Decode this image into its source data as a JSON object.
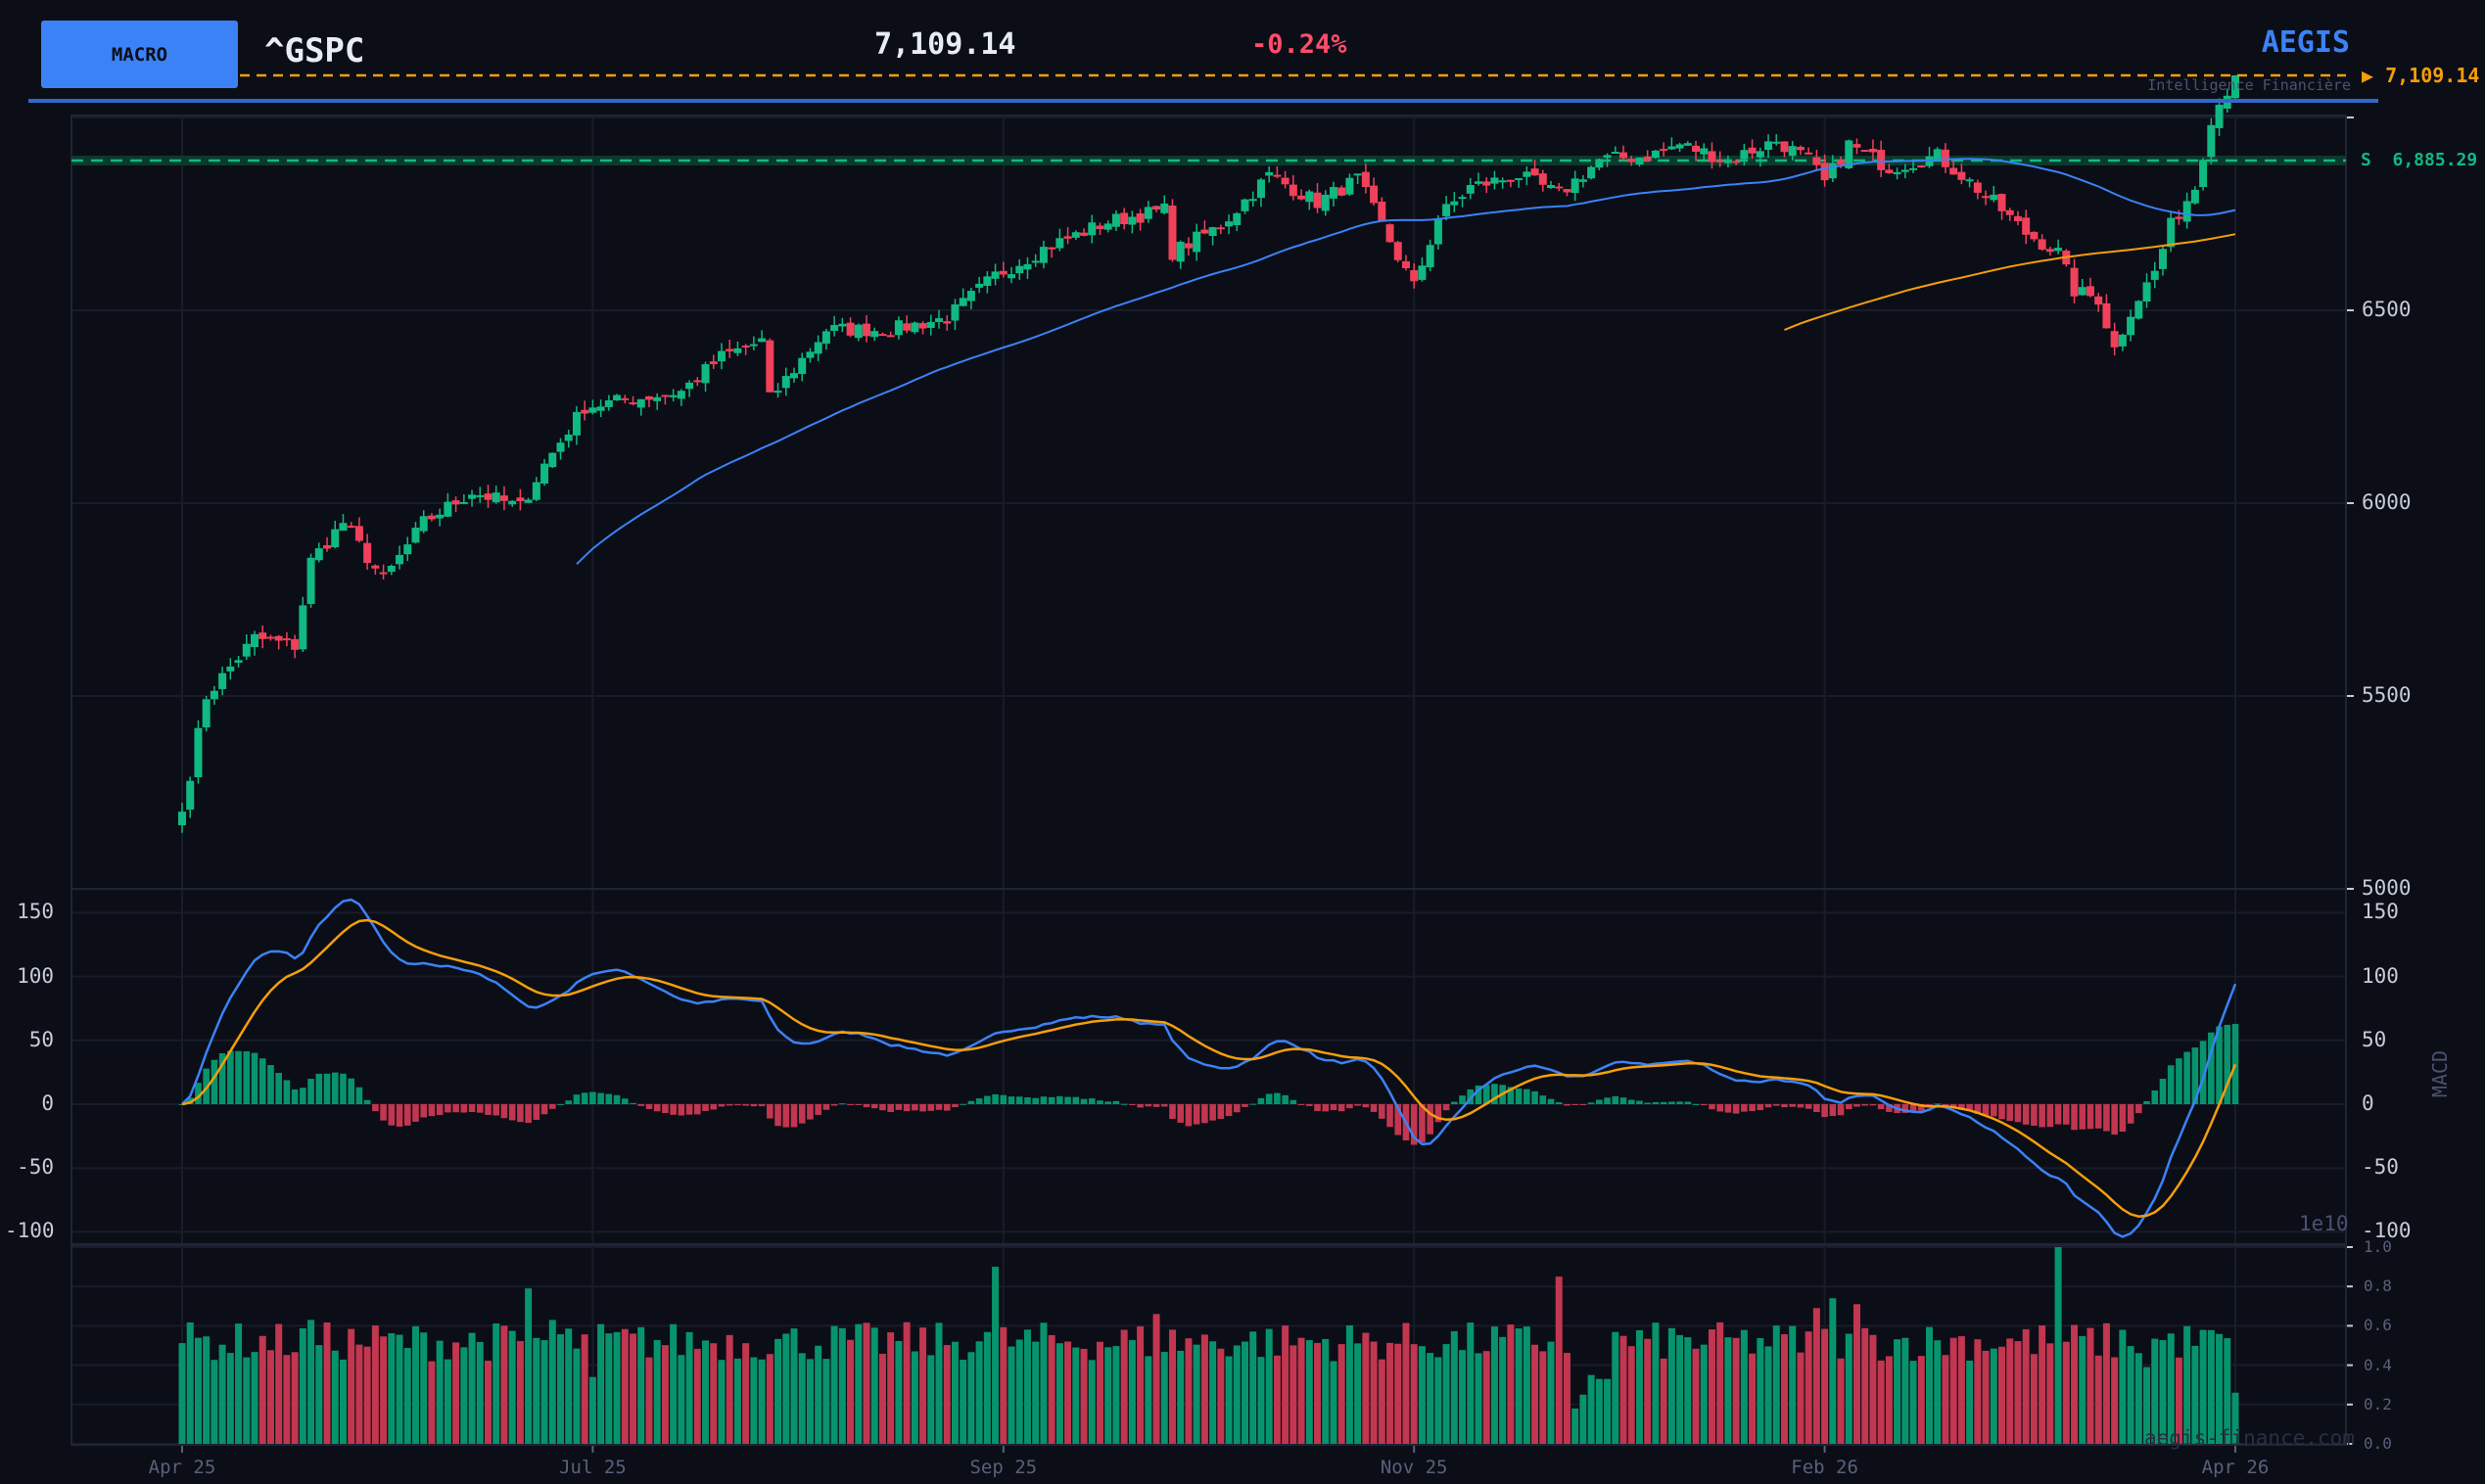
{
  "header": {
    "macro_button": "MACRO",
    "ticker": "^GSPC",
    "price": "7,109.14",
    "change": "-0.24%",
    "brand": "AEGIS",
    "tagline": "Intelligence Financière",
    "last_price_label": "▶ 7,109.14",
    "support_label": "S  6,885.29"
  },
  "watermark": "aegis-finance.com",
  "colors": {
    "up": "#10b981",
    "down": "#f0405a",
    "vol_up": "#07946c",
    "vol_down": "#c23650",
    "sma50": "#3b82f6",
    "sma200": "#f59e0b",
    "macd": "#3b82f6",
    "signal": "#f59e0b",
    "accent": "#3b82f6"
  },
  "chart_data": [
    {
      "type": "candlestick",
      "title": "^GSPC",
      "last_price": 7109.14,
      "support": 6885.29,
      "ylim": [
        5000,
        7050
      ],
      "yticks": [
        "5000",
        "5500",
        "6000",
        "6500"
      ],
      "xticks": [
        "Apr 25",
        "Jul 25",
        "Sep 25",
        "Nov 25",
        "Feb 26",
        "Apr 26"
      ],
      "bars": 256,
      "overlays": [
        "SMA 50",
        "SMA 200"
      ],
      "close_anchors": [
        [
          0,
          5200
        ],
        [
          3,
          5500
        ],
        [
          9,
          5650
        ],
        [
          14,
          5630
        ],
        [
          16,
          5850
        ],
        [
          20,
          5950
        ],
        [
          25,
          5800
        ],
        [
          30,
          5950
        ],
        [
          36,
          6030
        ],
        [
          42,
          5990
        ],
        [
          45,
          6100
        ],
        [
          50,
          6250
        ],
        [
          56,
          6270
        ],
        [
          62,
          6290
        ],
        [
          67,
          6380
        ],
        [
          72,
          6420
        ],
        [
          73,
          6270
        ],
        [
          80,
          6450
        ],
        [
          88,
          6450
        ],
        [
          95,
          6480
        ],
        [
          101,
          6590
        ],
        [
          107,
          6660
        ],
        [
          115,
          6730
        ],
        [
          122,
          6760
        ],
        [
          123,
          6650
        ],
        [
          129,
          6720
        ],
        [
          135,
          6850
        ],
        [
          141,
          6780
        ],
        [
          146,
          6840
        ],
        [
          150,
          6680
        ],
        [
          153,
          6560
        ],
        [
          156,
          6740
        ],
        [
          160,
          6820
        ],
        [
          166,
          6850
        ],
        [
          171,
          6800
        ],
        [
          176,
          6890
        ],
        [
          182,
          6900
        ],
        [
          186,
          6930
        ],
        [
          192,
          6890
        ],
        [
          198,
          6940
        ],
        [
          202,
          6890
        ],
        [
          204,
          6830
        ],
        [
          207,
          6930
        ],
        [
          212,
          6870
        ],
        [
          218,
          6900
        ],
        [
          221,
          6850
        ],
        [
          225,
          6780
        ],
        [
          229,
          6700
        ],
        [
          233,
          6650
        ],
        [
          235,
          6550
        ],
        [
          238,
          6530
        ],
        [
          240,
          6400
        ],
        [
          242,
          6500
        ],
        [
          245,
          6600
        ],
        [
          247,
          6720
        ],
        [
          250,
          6820
        ],
        [
          252,
          7000
        ],
        [
          255,
          7109.14
        ]
      ]
    },
    {
      "type": "macd",
      "ylabel": "MACD",
      "ylim": [
        -110,
        160
      ],
      "yticks": [
        "150",
        "100",
        "50",
        "0",
        "-50",
        "-100"
      ],
      "params": [
        12,
        26,
        9
      ]
    },
    {
      "type": "bar",
      "name": "volume",
      "unit_label": "1e10",
      "ylim": [
        0,
        1.0
      ],
      "yticks": [
        "1.0",
        "0.8",
        "0.6",
        "0.4",
        "0.2",
        "0.0"
      ],
      "typical_range": [
        0.42,
        0.62
      ],
      "spikes": [
        [
          16,
          0.63
        ],
        [
          43,
          0.79
        ],
        [
          46,
          0.63
        ],
        [
          51,
          0.34
        ],
        [
          101,
          0.9
        ],
        [
          121,
          0.66
        ],
        [
          171,
          0.85
        ],
        [
          173,
          0.18
        ],
        [
          174,
          0.25
        ],
        [
          175,
          0.35
        ],
        [
          176,
          0.33
        ],
        [
          177,
          0.33
        ],
        [
          203,
          0.69
        ],
        [
          205,
          0.74
        ],
        [
          208,
          0.71
        ],
        [
          233,
          1.0
        ],
        [
          244,
          0.39
        ],
        [
          255,
          0.26
        ]
      ]
    }
  ]
}
